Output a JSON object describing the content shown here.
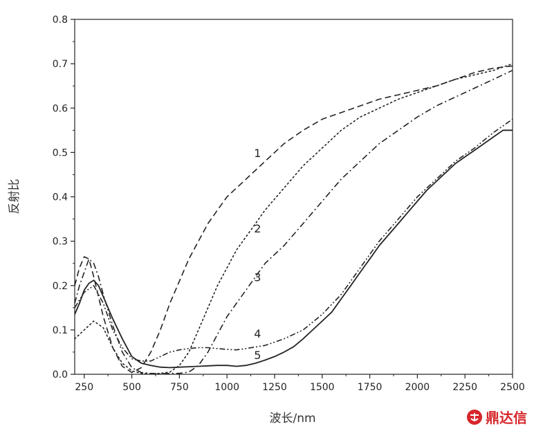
{
  "chart_data": {
    "type": "line",
    "title": "",
    "xlabel": "波长/nm",
    "ylabel": "反射比",
    "xlim": [
      200,
      2500
    ],
    "ylim": [
      0,
      0.8
    ],
    "xticks": [
      250,
      500,
      750,
      1000,
      1250,
      1500,
      1750,
      2000,
      2250,
      2500
    ],
    "yticks": [
      0.0,
      0.1,
      0.2,
      0.3,
      0.4,
      0.5,
      0.6,
      0.7,
      0.8
    ],
    "xtick_labels": [
      "250",
      "500",
      "750",
      "1000",
      "1250",
      "1500",
      "1750",
      "2000",
      "2250",
      "2500"
    ],
    "ytick_labels": [
      "0.0",
      "0.1",
      "0.2",
      "0.3",
      "0.4",
      "0.5",
      "0.6",
      "0.7",
      "0.8"
    ],
    "grid": false,
    "legend": "none",
    "series": [
      {
        "label": "1",
        "style": "dash",
        "label_at": [
          1120,
          0.485
        ],
        "points": [
          [
            200,
            0.2
          ],
          [
            225,
            0.24
          ],
          [
            250,
            0.265
          ],
          [
            275,
            0.26
          ],
          [
            300,
            0.22
          ],
          [
            350,
            0.13
          ],
          [
            400,
            0.06
          ],
          [
            450,
            0.018
          ],
          [
            500,
            0.004
          ],
          [
            550,
            0.015
          ],
          [
            600,
            0.05
          ],
          [
            650,
            0.1
          ],
          [
            700,
            0.16
          ],
          [
            750,
            0.21
          ],
          [
            800,
            0.26
          ],
          [
            850,
            0.3
          ],
          [
            900,
            0.34
          ],
          [
            950,
            0.37
          ],
          [
            1000,
            0.4
          ],
          [
            1050,
            0.42
          ],
          [
            1100,
            0.44
          ],
          [
            1150,
            0.46
          ],
          [
            1200,
            0.48
          ],
          [
            1250,
            0.5
          ],
          [
            1300,
            0.52
          ],
          [
            1400,
            0.55
          ],
          [
            1500,
            0.575
          ],
          [
            1600,
            0.59
          ],
          [
            1700,
            0.605
          ],
          [
            1800,
            0.62
          ],
          [
            1900,
            0.63
          ],
          [
            2000,
            0.64
          ],
          [
            2100,
            0.65
          ],
          [
            2200,
            0.665
          ],
          [
            2300,
            0.68
          ],
          [
            2400,
            0.69
          ],
          [
            2500,
            0.695
          ]
        ]
      },
      {
        "label": "2",
        "style": "dot",
        "label_at": [
          1120,
          0.315
        ],
        "points": [
          [
            200,
            0.08
          ],
          [
            250,
            0.1
          ],
          [
            300,
            0.12
          ],
          [
            350,
            0.105
          ],
          [
            400,
            0.06
          ],
          [
            450,
            0.025
          ],
          [
            500,
            0.008
          ],
          [
            550,
            0.002
          ],
          [
            600,
            0.001
          ],
          [
            650,
            0.002
          ],
          [
            700,
            0.005
          ],
          [
            750,
            0.02
          ],
          [
            800,
            0.05
          ],
          [
            850,
            0.1
          ],
          [
            900,
            0.15
          ],
          [
            950,
            0.2
          ],
          [
            1000,
            0.24
          ],
          [
            1050,
            0.28
          ],
          [
            1100,
            0.31
          ],
          [
            1150,
            0.34
          ],
          [
            1200,
            0.37
          ],
          [
            1300,
            0.42
          ],
          [
            1400,
            0.47
          ],
          [
            1500,
            0.51
          ],
          [
            1600,
            0.55
          ],
          [
            1700,
            0.58
          ],
          [
            1800,
            0.6
          ],
          [
            1900,
            0.62
          ],
          [
            2000,
            0.635
          ],
          [
            2100,
            0.65
          ],
          [
            2200,
            0.665
          ],
          [
            2300,
            0.675
          ],
          [
            2400,
            0.685
          ],
          [
            2500,
            0.7
          ]
        ]
      },
      {
        "label": "3",
        "style": "dashdot",
        "label_at": [
          1120,
          0.205
        ],
        "points": [
          [
            200,
            0.16
          ],
          [
            225,
            0.2
          ],
          [
            250,
            0.23
          ],
          [
            275,
            0.26
          ],
          [
            300,
            0.25
          ],
          [
            325,
            0.22
          ],
          [
            350,
            0.18
          ],
          [
            400,
            0.11
          ],
          [
            450,
            0.05
          ],
          [
            500,
            0.015
          ],
          [
            550,
            0.004
          ],
          [
            600,
            0.002
          ],
          [
            650,
            0.001
          ],
          [
            700,
            0.002
          ],
          [
            750,
            0.002
          ],
          [
            800,
            0.005
          ],
          [
            850,
            0.02
          ],
          [
            900,
            0.05
          ],
          [
            950,
            0.09
          ],
          [
            1000,
            0.13
          ],
          [
            1050,
            0.16
          ],
          [
            1100,
            0.19
          ],
          [
            1150,
            0.22
          ],
          [
            1200,
            0.25
          ],
          [
            1300,
            0.29
          ],
          [
            1400,
            0.34
          ],
          [
            1500,
            0.39
          ],
          [
            1600,
            0.44
          ],
          [
            1700,
            0.48
          ],
          [
            1800,
            0.52
          ],
          [
            1900,
            0.55
          ],
          [
            2000,
            0.58
          ],
          [
            2100,
            0.605
          ],
          [
            2200,
            0.625
          ],
          [
            2300,
            0.645
          ],
          [
            2400,
            0.665
          ],
          [
            2500,
            0.685
          ]
        ]
      },
      {
        "label": "4",
        "style": "dashdotdot",
        "label_at": [
          1120,
          0.078
        ],
        "points": [
          [
            200,
            0.15
          ],
          [
            250,
            0.185
          ],
          [
            300,
            0.2
          ],
          [
            350,
            0.16
          ],
          [
            400,
            0.1
          ],
          [
            450,
            0.06
          ],
          [
            500,
            0.035
          ],
          [
            550,
            0.03
          ],
          [
            600,
            0.03
          ],
          [
            650,
            0.04
          ],
          [
            700,
            0.05
          ],
          [
            750,
            0.055
          ],
          [
            800,
            0.058
          ],
          [
            850,
            0.06
          ],
          [
            900,
            0.06
          ],
          [
            950,
            0.058
          ],
          [
            1000,
            0.056
          ],
          [
            1050,
            0.055
          ],
          [
            1100,
            0.058
          ],
          [
            1200,
            0.065
          ],
          [
            1300,
            0.08
          ],
          [
            1400,
            0.1
          ],
          [
            1500,
            0.135
          ],
          [
            1600,
            0.18
          ],
          [
            1700,
            0.24
          ],
          [
            1800,
            0.3
          ],
          [
            1900,
            0.35
          ],
          [
            2000,
            0.4
          ],
          [
            2100,
            0.44
          ],
          [
            2200,
            0.48
          ],
          [
            2300,
            0.51
          ],
          [
            2400,
            0.545
          ],
          [
            2500,
            0.575
          ]
        ]
      },
      {
        "label": "5",
        "style": "solid",
        "label_at": [
          1120,
          0.03
        ],
        "points": [
          [
            200,
            0.135
          ],
          [
            225,
            0.16
          ],
          [
            250,
            0.19
          ],
          [
            275,
            0.205
          ],
          [
            300,
            0.212
          ],
          [
            325,
            0.2
          ],
          [
            350,
            0.175
          ],
          [
            400,
            0.125
          ],
          [
            450,
            0.08
          ],
          [
            500,
            0.04
          ],
          [
            550,
            0.025
          ],
          [
            600,
            0.02
          ],
          [
            650,
            0.016
          ],
          [
            700,
            0.015
          ],
          [
            750,
            0.016
          ],
          [
            800,
            0.017
          ],
          [
            850,
            0.018
          ],
          [
            900,
            0.019
          ],
          [
            950,
            0.02
          ],
          [
            1000,
            0.02
          ],
          [
            1050,
            0.018
          ],
          [
            1100,
            0.02
          ],
          [
            1150,
            0.025
          ],
          [
            1200,
            0.032
          ],
          [
            1250,
            0.04
          ],
          [
            1300,
            0.05
          ],
          [
            1350,
            0.062
          ],
          [
            1400,
            0.08
          ],
          [
            1450,
            0.1
          ],
          [
            1500,
            0.12
          ],
          [
            1550,
            0.14
          ],
          [
            1600,
            0.17
          ],
          [
            1650,
            0.2
          ],
          [
            1700,
            0.23
          ],
          [
            1750,
            0.26
          ],
          [
            1800,
            0.29
          ],
          [
            1850,
            0.315
          ],
          [
            1900,
            0.34
          ],
          [
            1950,
            0.365
          ],
          [
            2000,
            0.39
          ],
          [
            2050,
            0.415
          ],
          [
            2100,
            0.435
          ],
          [
            2150,
            0.455
          ],
          [
            2200,
            0.475
          ],
          [
            2250,
            0.49
          ],
          [
            2300,
            0.505
          ],
          [
            2350,
            0.52
          ],
          [
            2400,
            0.535
          ],
          [
            2450,
            0.55
          ],
          [
            2500,
            0.55
          ]
        ]
      }
    ]
  },
  "watermark": {
    "text": "鼎达信",
    "icon": "seal-logo-icon",
    "color": "#d6262b"
  }
}
